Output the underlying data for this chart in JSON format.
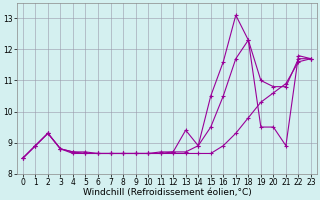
{
  "xlabel": "Windchill (Refroidissement éolien,°C)",
  "x": [
    0,
    1,
    2,
    3,
    4,
    5,
    6,
    7,
    8,
    9,
    10,
    11,
    12,
    13,
    14,
    15,
    16,
    17,
    18,
    19,
    20,
    21,
    22,
    23
  ],
  "line1": [
    8.5,
    8.9,
    9.3,
    8.8,
    8.7,
    8.7,
    8.65,
    8.65,
    8.65,
    8.65,
    8.65,
    8.7,
    8.7,
    9.4,
    8.9,
    10.5,
    11.6,
    13.1,
    12.3,
    9.5,
    9.5,
    8.9,
    11.8,
    11.7
  ],
  "line2": [
    8.5,
    8.9,
    9.3,
    8.8,
    8.7,
    8.65,
    8.65,
    8.65,
    8.65,
    8.65,
    8.65,
    8.65,
    8.7,
    8.7,
    8.9,
    9.5,
    10.5,
    11.7,
    12.3,
    11.0,
    10.8,
    10.8,
    11.7,
    11.7
  ],
  "line3": [
    8.5,
    8.9,
    9.3,
    8.8,
    8.65,
    8.65,
    8.65,
    8.65,
    8.65,
    8.65,
    8.65,
    8.65,
    8.65,
    8.65,
    8.65,
    8.65,
    8.9,
    9.3,
    9.8,
    10.3,
    10.6,
    10.9,
    11.6,
    11.7
  ],
  "line_color": "#990099",
  "bg_color": "#d4f0f0",
  "grid_color": "#9999aa",
  "ylim": [
    8.0,
    13.5
  ],
  "xlim": [
    -0.5,
    23.5
  ],
  "yticks": [
    8,
    9,
    10,
    11,
    12,
    13
  ],
  "xticks": [
    0,
    1,
    2,
    3,
    4,
    5,
    6,
    7,
    8,
    9,
    10,
    11,
    12,
    13,
    14,
    15,
    16,
    17,
    18,
    19,
    20,
    21,
    22,
    23
  ],
  "tick_fontsize": 5.5,
  "label_fontsize": 6.5,
  "marker": "+",
  "markersize": 3.5,
  "linewidth": 0.8
}
